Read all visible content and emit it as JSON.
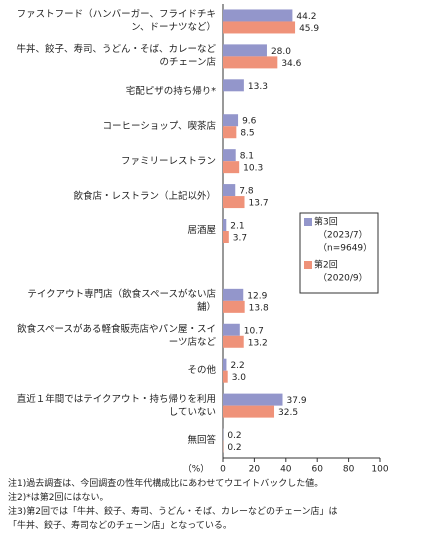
{
  "chart_data": {
    "type": "bar",
    "orientation": "horizontal",
    "categories": [
      "ファストフード（ハンバーガー、フライドチキン、ドーナツなど）",
      "牛丼、餃子、寿司、うどん・そば、カレーなどのチェーン店",
      "宅配ピザの持ち帰り*",
      "コーヒーショップ、喫茶店",
      "ファミリーレストラン",
      "飲食店・レストラン（上記以外）",
      "居酒屋",
      null,
      "テイクアウト専門店（飲食スペースがない店舗）",
      "飲食スペースがある軽食販売店やパン屋・スイーツ店など",
      "その他",
      "直近１年間ではテイクアウト・持ち帰りを利用していない",
      "無回答"
    ],
    "series": [
      {
        "name": "第3回",
        "legend_detail": [
          "（2023/7）",
          "（n=9649）"
        ],
        "color": "#9396cb",
        "values": [
          44.2,
          28.0,
          13.3,
          9.6,
          8.1,
          7.8,
          2.1,
          null,
          12.9,
          10.7,
          2.2,
          37.9,
          0.2
        ],
        "value_labels": [
          "44.2",
          "28.0",
          "13.3",
          "9.6",
          "8.1",
          "7.8",
          "2.1",
          null,
          "12.9",
          "10.7",
          "2.2",
          "37.9",
          "0.2"
        ]
      },
      {
        "name": "第2回",
        "legend_detail": [
          "（2020/9）"
        ],
        "color": "#ef9279",
        "values": [
          45.9,
          34.6,
          null,
          8.5,
          10.3,
          13.7,
          3.7,
          null,
          13.8,
          13.2,
          3.0,
          32.5,
          0.2
        ],
        "value_labels": [
          "45.9",
          "34.6",
          null,
          "8.5",
          "10.3",
          "13.7",
          "3.7",
          null,
          "13.8",
          "13.2",
          "3.0",
          "32.5",
          "0.2"
        ]
      }
    ],
    "xlim": [
      0,
      100
    ],
    "xticks": [
      0,
      20,
      40,
      60,
      80,
      100
    ],
    "x_unit": "（%）",
    "notes": [
      "注1)過去調査は、今回調査の性年代構成比にあわせてウエイトバックした値。",
      "注2)*は第2回にはない。",
      "注3)第2回では「牛丼、餃子、寿司、うどん・そば、カレーなどのチェーン店」は",
      "「牛丼、餃子、寿司などのチェーン店」となっている。"
    ]
  }
}
